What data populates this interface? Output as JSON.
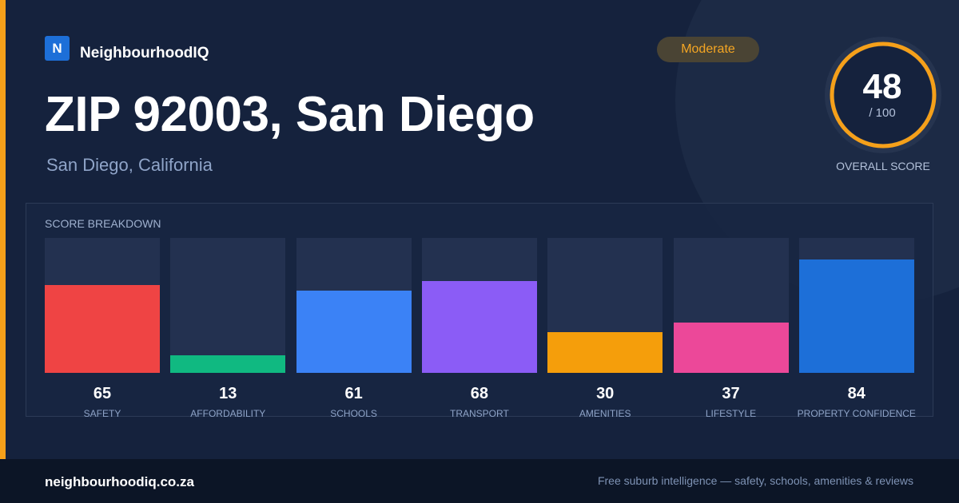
{
  "brand": {
    "logo_letter": "N",
    "name": "NeighbourhoodIQ"
  },
  "header": {
    "title": "ZIP 92003, San Diego",
    "subtitle": "San Diego, California",
    "badge": "Moderate"
  },
  "overall": {
    "value": 48,
    "value_text": "48",
    "max_text": "/ 100",
    "label": "OVERALL SCORE",
    "max": 100,
    "ring_color": "#f5a01a"
  },
  "breakdown": {
    "title": "SCORE BREAKDOWN"
  },
  "chart_data": {
    "type": "bar",
    "title": "SCORE BREAKDOWN",
    "ylim": [
      0,
      100
    ],
    "grid": false,
    "categories": [
      "SAFETY",
      "AFFORDABILITY",
      "SCHOOLS",
      "TRANSPORT",
      "AMENITIES",
      "LIFESTYLE",
      "PROPERTY CONFIDENCE"
    ],
    "values": [
      65,
      13,
      61,
      68,
      30,
      37,
      84
    ],
    "colors": [
      "#ef4444",
      "#10b981",
      "#3b82f6",
      "#8b5cf6",
      "#f59e0b",
      "#ec4899",
      "#1d6fd8"
    ]
  },
  "footer": {
    "domain": "neighbourhoodiq.co.za",
    "tagline": "Free suburb intelligence — safety, schools, amenities & reviews"
  }
}
